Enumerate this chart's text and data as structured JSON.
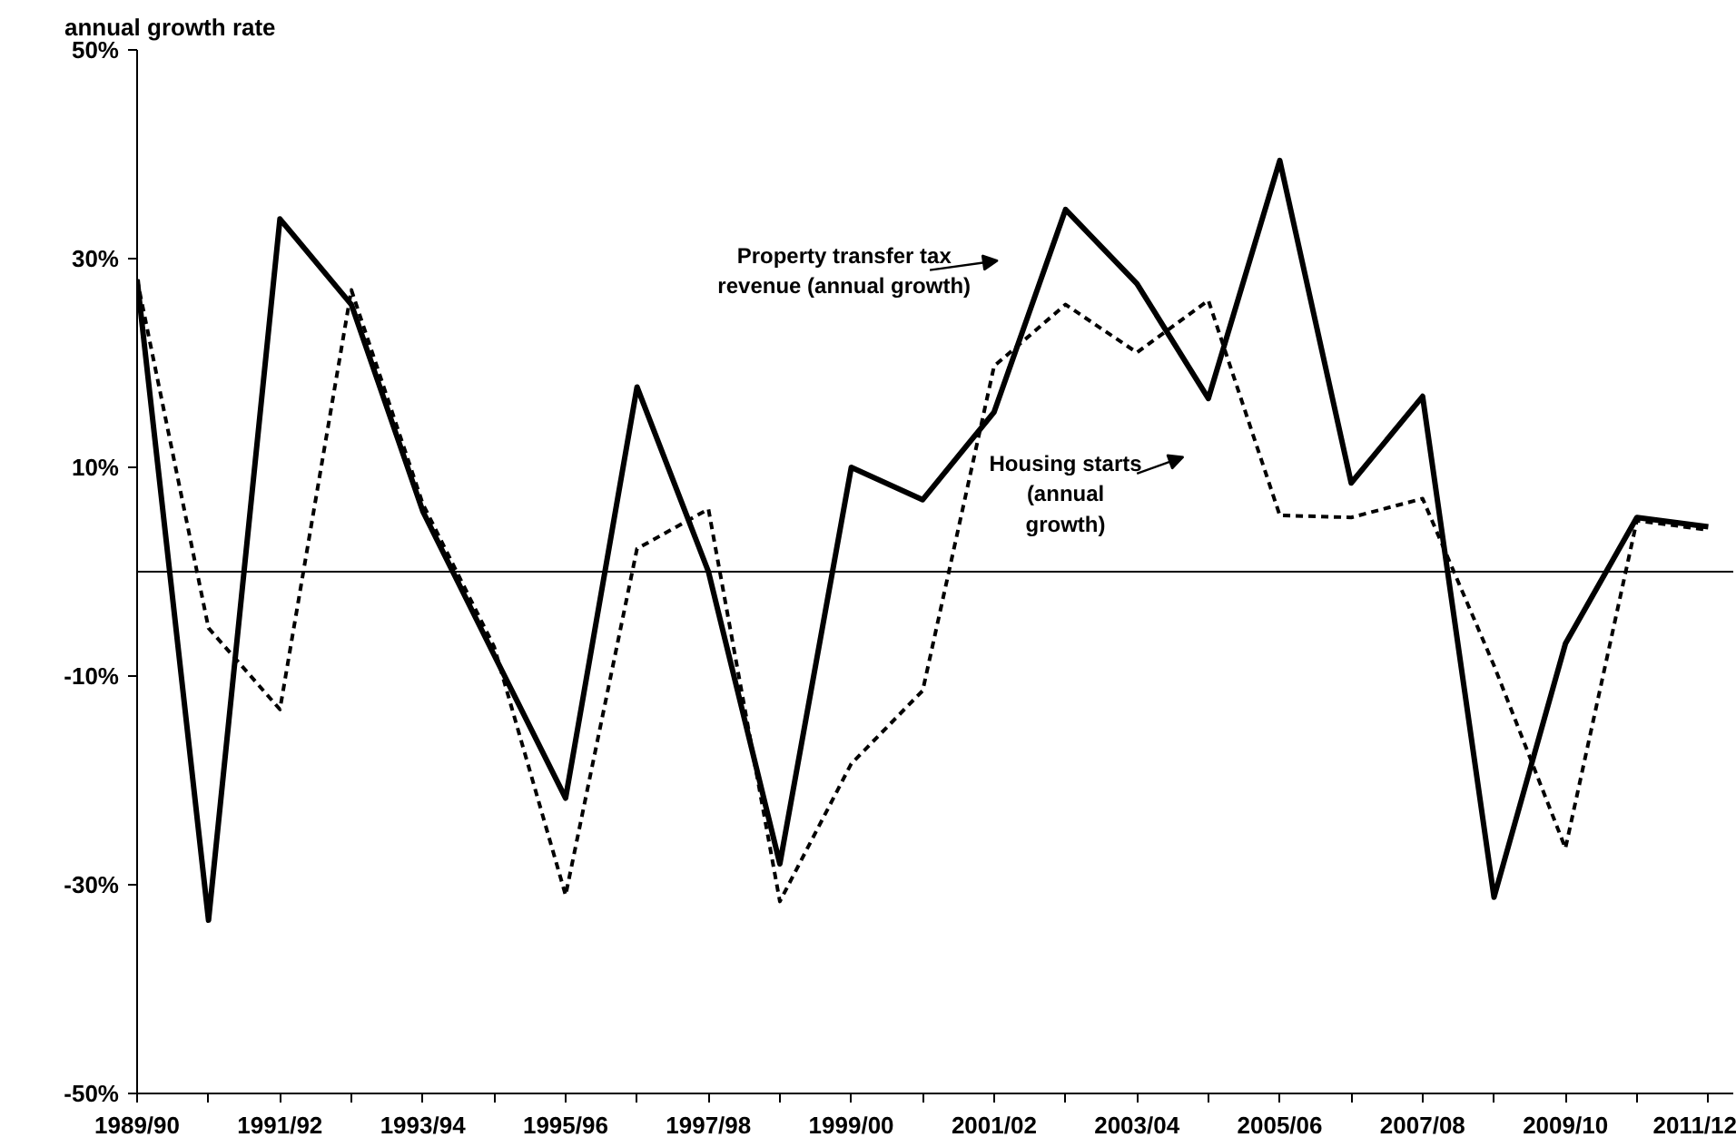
{
  "chart_data": {
    "type": "line",
    "ylabel": "annual growth rate",
    "categories": [
      "1989/90",
      null,
      "1991/92",
      null,
      "1993/94",
      null,
      "1995/96",
      null,
      "1997/98",
      null,
      "1999/00",
      null,
      "2001/02",
      null,
      "2003/04",
      null,
      "2005/06",
      null,
      "2007/08",
      null,
      "2009/10",
      null,
      "2011/12"
    ],
    "series": [
      {
        "color": "#000000",
        "line_style": "solid",
        "values": [
          28,
          -33.4,
          33.8,
          25.6,
          5.8,
          -8,
          -21.7,
          17.7,
          0,
          -28,
          10,
          6.9,
          15.3,
          34.7,
          27.6,
          16.6,
          39.4,
          8.5,
          16.8,
          -31.2,
          -6.9,
          5.2,
          4.3
        ]
      },
      {
        "color": "#000000",
        "line_style": "dashed",
        "values": [
          28,
          -5.4,
          -13.2,
          27,
          6.5,
          -7.2,
          -31,
          2.2,
          6,
          -31.6,
          -18.4,
          -11.4,
          19.7,
          25.6,
          21,
          26,
          5.4,
          5.2,
          7,
          -9,
          -26.5,
          4.9,
          4
        ]
      }
    ],
    "ylim": [
      -50,
      50
    ],
    "yticks": [
      {
        "value": -50,
        "label": "-50%"
      },
      {
        "value": -30,
        "label": "-30%"
      },
      {
        "value": -10,
        "label": "-10%"
      },
      {
        "value": 10,
        "label": "10%"
      },
      {
        "value": 30,
        "label": "30%"
      },
      {
        "value": 50,
        "label": "50%"
      }
    ],
    "ref_lines": [
      {
        "axis": "y",
        "value": 0,
        "color": "#000000"
      }
    ],
    "annotations": [
      "Property transfer tax\nrevenue (annual growth)",
      "Housing starts\n(annual\ngrowth)"
    ],
    "grid": false,
    "marker": "none"
  }
}
